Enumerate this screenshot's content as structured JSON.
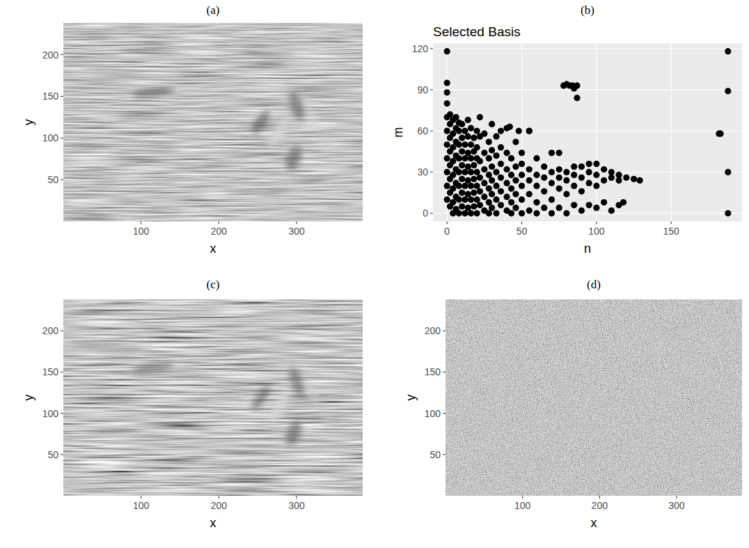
{
  "chart_data": [
    {
      "type": "image",
      "title": "(a)",
      "x_label": "x",
      "y_label": "y",
      "xlim": [
        0,
        385
      ],
      "ylim": [
        0,
        238
      ],
      "xticks": [
        100,
        200,
        300
      ],
      "yticks": [
        50,
        100,
        150,
        200
      ],
      "grid": false
    },
    {
      "type": "scatter",
      "title": "(b)",
      "subtitle": "Selected Basis",
      "x_label": "n",
      "y_label": "m",
      "xlim": [
        -9.4,
        197.4
      ],
      "ylim": [
        -5.9,
        123.9
      ],
      "xticks": [
        0,
        50,
        100,
        150
      ],
      "yticks": [
        0,
        30,
        60,
        90,
        120
      ],
      "grid": true,
      "color": "#000000",
      "marker": "circle",
      "x": [
        0,
        0,
        0,
        0,
        0,
        0,
        0,
        0,
        0,
        0,
        0,
        2,
        2,
        2,
        2,
        2,
        2,
        2,
        2,
        4,
        4,
        4,
        4,
        4,
        4,
        4,
        4,
        6,
        6,
        6,
        6,
        6,
        6,
        6,
        6,
        8,
        8,
        8,
        8,
        8,
        8,
        8,
        8,
        10,
        10,
        10,
        10,
        10,
        10,
        10,
        12,
        12,
        12,
        12,
        12,
        12,
        12,
        14,
        14,
        14,
        14,
        14,
        14,
        14,
        16,
        16,
        16,
        16,
        16,
        16,
        16,
        18,
        18,
        18,
        18,
        18,
        18,
        20,
        20,
        20,
        20,
        20,
        20,
        20,
        22,
        22,
        22,
        22,
        22,
        22,
        25,
        25,
        25,
        25,
        25,
        25,
        28,
        28,
        28,
        28,
        28,
        28,
        30,
        30,
        30,
        30,
        30,
        30,
        33,
        33,
        33,
        33,
        33,
        33,
        36,
        36,
        36,
        36,
        36,
        36,
        40,
        40,
        40,
        40,
        40,
        40,
        43,
        43,
        43,
        43,
        43,
        46,
        46,
        46,
        46,
        46,
        50,
        50,
        50,
        50,
        50,
        50,
        55,
        55,
        55,
        55,
        55,
        60,
        60,
        60,
        60,
        60,
        65,
        65,
        65,
        65,
        70,
        70,
        70,
        70,
        70,
        75,
        75,
        75,
        75,
        80,
        80,
        80,
        80,
        85,
        85,
        85,
        85,
        90,
        90,
        90,
        90,
        95,
        95,
        95,
        95,
        100,
        100,
        100,
        100,
        105,
        105,
        105,
        110,
        110,
        110,
        115,
        115,
        115,
        118,
        120,
        125,
        129,
        78,
        80,
        82,
        84,
        85,
        87,
        87,
        42,
        48,
        55,
        75,
        182,
        183,
        188,
        188,
        188,
        188
      ],
      "values": [
        10,
        20,
        30,
        40,
        50,
        60,
        70,
        80,
        88,
        95,
        118,
        5,
        15,
        25,
        35,
        45,
        55,
        65,
        72,
        0,
        8,
        18,
        28,
        38,
        48,
        58,
        68,
        3,
        12,
        22,
        32,
        42,
        52,
        62,
        70,
        0,
        10,
        20,
        30,
        40,
        50,
        60,
        66,
        5,
        15,
        25,
        35,
        45,
        55,
        65,
        0,
        10,
        20,
        30,
        40,
        50,
        60,
        4,
        14,
        24,
        34,
        44,
        56,
        68,
        0,
        10,
        20,
        30,
        40,
        50,
        62,
        5,
        15,
        25,
        35,
        45,
        55,
        0,
        10,
        20,
        30,
        40,
        48,
        60,
        6,
        16,
        26,
        38,
        56,
        70,
        2,
        12,
        22,
        32,
        44,
        58,
        0,
        8,
        18,
        28,
        40,
        52,
        4,
        14,
        24,
        34,
        46,
        65,
        0,
        10,
        20,
        30,
        42,
        56,
        6,
        16,
        26,
        36,
        48,
        60,
        2,
        12,
        22,
        32,
        44,
        62,
        0,
        8,
        18,
        28,
        40,
        4,
        14,
        24,
        34,
        52,
        0,
        10,
        20,
        28,
        36,
        44,
        2,
        14,
        24,
        32,
        60,
        0,
        8,
        20,
        28,
        40,
        4,
        16,
        26,
        34,
        0,
        10,
        22,
        30,
        44,
        4,
        18,
        26,
        32,
        0,
        14,
        24,
        30,
        6,
        20,
        28,
        34,
        2,
        16,
        26,
        34,
        6,
        22,
        30,
        36,
        4,
        20,
        28,
        36,
        8,
        24,
        32,
        2,
        26,
        30,
        6,
        24,
        28,
        8,
        26,
        25,
        24,
        93,
        94,
        93,
        93,
        91,
        84,
        93,
        63,
        60,
        60,
        44,
        58,
        58,
        118,
        89,
        30,
        0
      ]
    },
    {
      "type": "image",
      "title": "(c)",
      "x_label": "x",
      "y_label": "y",
      "xlim": [
        0,
        385
      ],
      "ylim": [
        0,
        238
      ],
      "xticks": [
        100,
        200,
        300
      ],
      "yticks": [
        50,
        100,
        150,
        200
      ],
      "grid": false
    },
    {
      "type": "image",
      "title": "(d)",
      "x_label": "x",
      "y_label": "y",
      "xlim": [
        0,
        385
      ],
      "ylim": [
        0,
        238
      ],
      "xticks": [
        100,
        200,
        300
      ],
      "yticks": [
        50,
        100,
        150,
        200
      ],
      "grid": false
    }
  ]
}
